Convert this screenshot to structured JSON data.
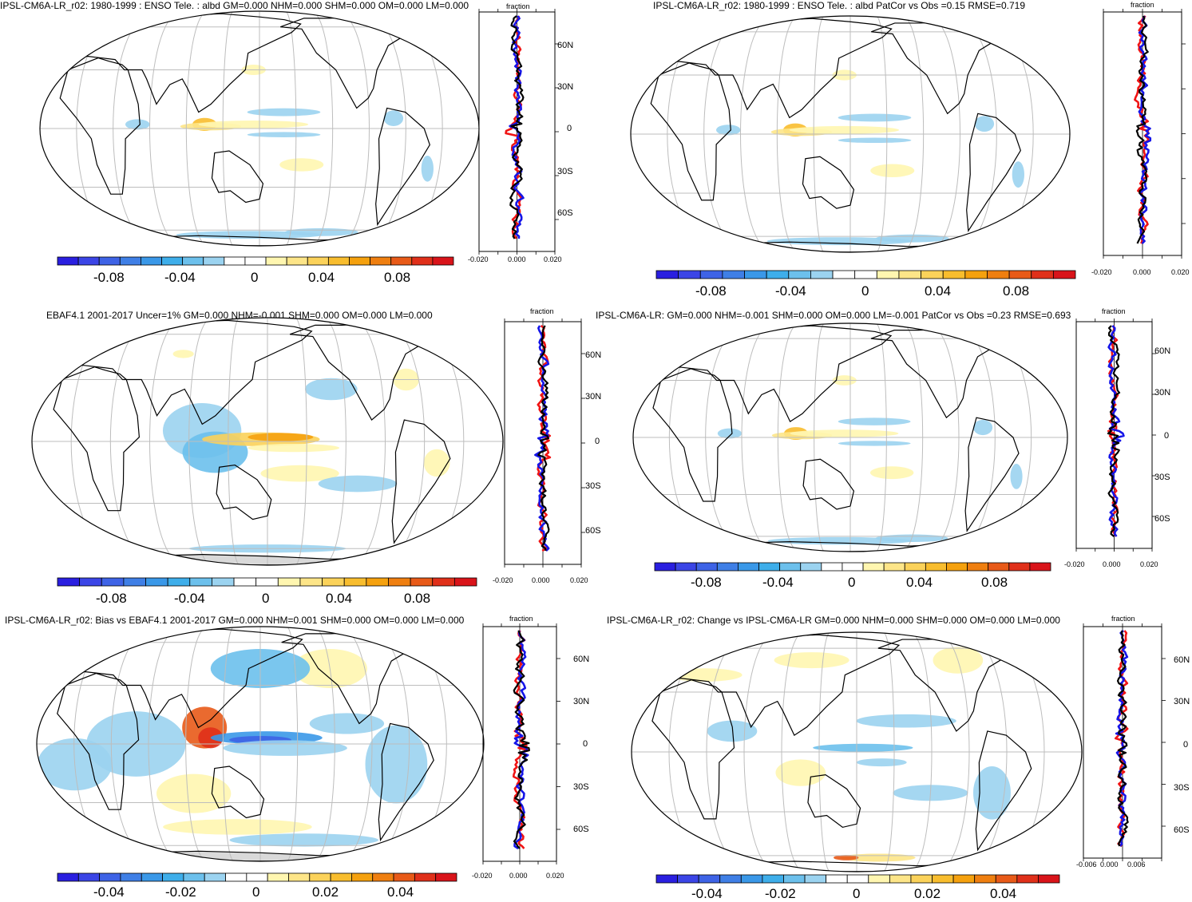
{
  "colors": {
    "scale": [
      "#2a1fe0",
      "#3b45e6",
      "#3e63e6",
      "#3f7fe6",
      "#3a98e8",
      "#3eaeea",
      "#6cc0ec",
      "#9bd3f0",
      "#ffffff",
      "#ffffff",
      "#fff6b0",
      "#fde588",
      "#fbd25a",
      "#f8bd2e",
      "#f5a10e",
      "#ef7f10",
      "#e85a18",
      "#e0301a",
      "#d9141a"
    ],
    "land": "#000000",
    "grid": "#bdbdbd",
    "blue_line": "#1515e8",
    "red_line": "#f01414",
    "black_line": "#000000",
    "missing": "#d9d9d9"
  },
  "panels": [
    {
      "id": "p1",
      "title": "IPSL-CM6A-LR_r02: 1980-1999 : ENSO Tele. : albd GM=0.000 NHM=0.000 SHM=0.000 OM=0.000 LM=0.000",
      "colorbar_labels": [
        "-0.08",
        "-0.04",
        "0",
        "0.04",
        "0.08"
      ],
      "profile_header": "fraction",
      "profile_xticks": [
        "-0.020",
        "0.000",
        "0.020"
      ],
      "lat_labels": [
        "60N",
        "30N",
        "0",
        "30S",
        "60S"
      ]
    },
    {
      "id": "p2",
      "title": "IPSL-CM6A-LR_r02: 1980-1999 : ENSO Tele. : albd PatCor vs Obs =0.15 RMSE=0.719",
      "colorbar_labels": [
        "-0.08",
        "-0.04",
        "0",
        "0.04",
        "0.08"
      ],
      "profile_header": "fraction",
      "profile_xticks": [
        "-0.020",
        "0.000",
        "0.020"
      ],
      "lat_labels": []
    },
    {
      "id": "p3",
      "title": "EBAF4.1 2001-2017 Uncer=1% GM=0.000 NHM=-0.001 SHM=0.000 OM=0.000 LM=0.000",
      "colorbar_labels": [
        "-0.08",
        "-0.04",
        "0",
        "0.04",
        "0.08"
      ],
      "profile_header": "fraction",
      "profile_xticks": [
        "-0.020",
        "0.000",
        "0.020"
      ],
      "lat_labels": [
        "60N",
        "30N",
        "0",
        "30S",
        "60S"
      ]
    },
    {
      "id": "p4",
      "title": "IPSL-CM6A-LR: GM=0.000 NHM=-0.001 SHM=0.000 OM=0.000 LM=-0.001 PatCor vs Obs =0.23 RMSE=0.693",
      "colorbar_labels": [
        "-0.08",
        "-0.04",
        "0",
        "0.04",
        "0.08"
      ],
      "profile_header": "fraction",
      "profile_xticks": [
        "-0.020",
        "0.000",
        "0.020"
      ],
      "lat_labels": [
        "60N",
        "30N",
        "0",
        "30S",
        "60S"
      ]
    },
    {
      "id": "p5",
      "title": "IPSL-CM6A-LR_r02: Bias vs EBAF4.1 2001-2017 GM=0.000 NHM=0.001 SHM=0.000 OM=0.000 LM=0.000",
      "colorbar_labels": [
        "-0.04",
        "-0.02",
        "0",
        "0.02",
        "0.04"
      ],
      "profile_header": "fraction",
      "profile_xticks": [
        "-0.020",
        "0.000",
        "0.020"
      ],
      "lat_labels": [
        "60N",
        "30N",
        "0",
        "30S",
        "60S"
      ]
    },
    {
      "id": "p6",
      "title": "IPSL-CM6A-LR_r02: Change vs IPSL-CM6A-LR GM=0.000 NHM=0.000 SHM=0.000 OM=0.000 LM=0.000",
      "colorbar_labels": [
        "-0.04",
        "-0.02",
        "0",
        "0.02",
        "0.04"
      ],
      "profile_header": "fraction",
      "profile_xticks": [
        "-0.006",
        "0.000",
        "0.006"
      ],
      "lat_labels": [
        "60N",
        "30N",
        "0",
        "30S",
        "60S"
      ]
    }
  ]
}
